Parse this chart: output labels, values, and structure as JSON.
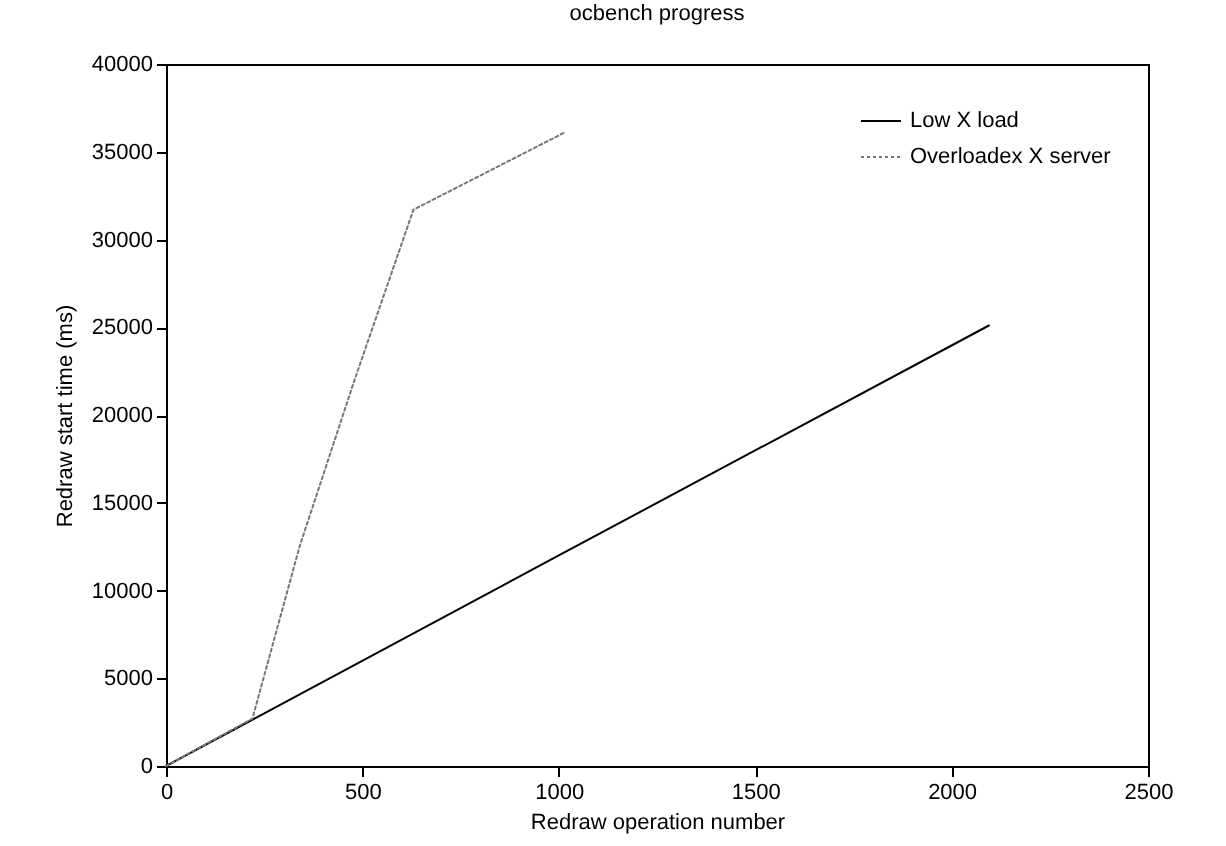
{
  "chart_data": {
    "type": "line",
    "title": "ocbench progress",
    "xlabel": "Redraw operation number",
    "ylabel": "Redraw start time (ms)",
    "xlim": [
      0,
      2500
    ],
    "xticks": [
      0,
      500,
      1000,
      1500,
      2000,
      2500
    ],
    "ylim": [
      0,
      40000
    ],
    "yticks": [
      0,
      5000,
      10000,
      15000,
      20000,
      25000,
      30000,
      35000,
      40000
    ],
    "grid": false,
    "legend": "top right",
    "series": [
      {
        "name": "Low X load",
        "color": "#000000",
        "line_style": "solid",
        "x": [
          0,
          1000,
          2095
        ],
        "values": [
          0,
          12000,
          25100
        ]
      },
      {
        "name": "Overloadex X server",
        "color": "#777777",
        "line_style": "dotted",
        "x": [
          0,
          220,
          340,
          480,
          630,
          1015
        ],
        "values": [
          0,
          2700,
          12500,
          22000,
          31700,
          36100
        ]
      }
    ]
  }
}
